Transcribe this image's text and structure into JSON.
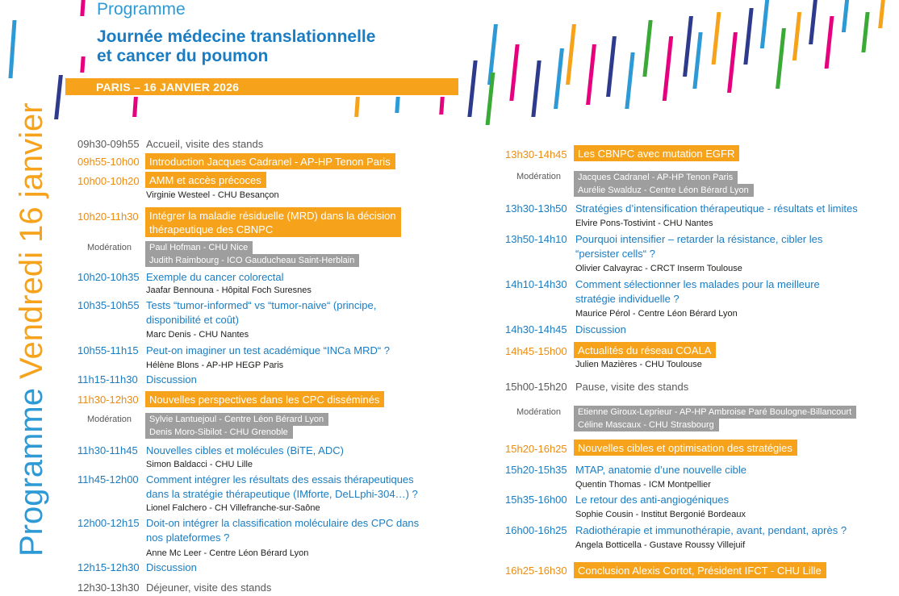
{
  "header": {
    "kicker": "Programme",
    "title_line1": "Journée médecine translationnelle",
    "title_line2": "et cancer du poumon",
    "date": "PARIS – 16 JANVIER 2026"
  },
  "side_title": {
    "prefix": "Programme ",
    "day": "Vendredi 16 janvier"
  },
  "left": {
    "r1": {
      "time": "09h30-09h55",
      "text": "Accueil, visite des stands"
    },
    "r2": {
      "time": "09h55-10h00",
      "text": "Introduction Jacques Cadranel - AP-HP Tenon Paris"
    },
    "r3": {
      "time": "10h00-10h20",
      "text": "AMM et accès précoces",
      "speaker": "Virginie Westeel - CHU Besançon"
    },
    "r4": {
      "time": "10h20-11h30",
      "text_l1": "Intégrer la maladie résiduelle (MRD) dans la décision",
      "text_l2": "thérapeutique des CBNPC"
    },
    "mod1": {
      "label": "Modération",
      "l1": "Paul Hofman - CHU Nice",
      "l2": "Judith Raimbourg - ICO Gaudu­cheau Saint-Herblain"
    },
    "r5": {
      "time": "10h20-10h35",
      "text": "Exemple du cancer colorectal",
      "speaker": "Jaafar Bennouna - Hôpital Foch Suresnes"
    },
    "r6": {
      "time": "10h35-10h55",
      "text_l1": "Tests “tumor-informed“ vs “tumor-naive“ (principe,",
      "text_l2": "disponibilité et coût)",
      "speaker": "Marc Denis - CHU Nantes"
    },
    "r7": {
      "time": "10h55-11h15",
      "text": "Peut-on imaginer un test académique “INCa MRD“ ?",
      "speaker": "Hélène Blons - AP-HP HEGP Paris"
    },
    "r8": {
      "time": "11h15-11h30",
      "text": "Discussion"
    },
    "r9": {
      "time": "11h30-12h30",
      "text": "Nouvelles perspectives dans les CPC disséminés"
    },
    "mod2": {
      "label": "Modération",
      "l1": "Sylvie Lantuejoul - Centre Léon Bérard Lyon",
      "l2": "Denis Moro-Sibilot - CHU Grenoble"
    },
    "r10": {
      "time": "11h30-11h45",
      "text": "Nouvelles cibles et molécules (BiTE, ADC)",
      "speaker": "Simon Baldacci - CHU Lille"
    },
    "r11": {
      "time": "11h45-12h00",
      "text_l1": "Comment intégrer les résultats des essais thérapeutiques",
      "text_l2": "dans la stratégie thérapeutique (IMforte, DeLLphi-304…) ?",
      "speaker": "Lionel Falchero - CH Villefranche-sur-Saône"
    },
    "r12": {
      "time": "12h00-12h15",
      "text_l1": "Doit-on intégrer la classification moléculaire des CPC dans",
      "text_l2": "nos plateformes ?",
      "speaker": "Anne Mc Leer - Centre Léon Bérard Lyon"
    },
    "r13": {
      "time": "12h15-12h30",
      "text": "Discussion"
    },
    "r14": {
      "time": "12h30-13h30",
      "text": "Déjeuner, visite des stands"
    }
  },
  "right": {
    "r1": {
      "time": "13h30-14h45",
      "text": "Les CBNPC avec mutation EGFR"
    },
    "mod1": {
      "label": "Modération",
      "l1": "Jacques Cadranel - AP-HP Tenon Paris",
      "l2": "Aurélie Swalduz - Centre Léon Bérard Lyon"
    },
    "r2": {
      "time": "13h30-13h50",
      "text": "Stratégies d’intensification thérapeutique - résultats et limites",
      "speaker": "Elvire Pons-Tostivint - CHU Nantes"
    },
    "r3": {
      "time": "13h50-14h10",
      "text_l1": "Pourquoi  intensifier – retarder la résistance, cibler les",
      "text_l2": "“persister cells“ ?",
      "speaker": "Olivier Calvayrac - CRCT Inserm Toulouse"
    },
    "r4": {
      "time": "14h10-14h30",
      "text_l1": "Comment sélectionner les malades pour la meilleure",
      "text_l2": "stratégie individuelle ?",
      "speaker": "Maurice Pérol - Centre Léon Bérard Lyon"
    },
    "r5": {
      "time": "14h30-14h45",
      "text": "Discussion"
    },
    "r6": {
      "time": "14h45-15h00",
      "text": "Actualités du réseau COALA",
      "speaker": "Julien Mazières - CHU Toulouse"
    },
    "r7": {
      "time": "15h00-15h20",
      "text": "Pause, visite des stands"
    },
    "mod2": {
      "label": "Modération",
      "l1": "Etienne Giroux-Leprieur - AP-HP Ambroise Paré Boulogne-Billancourt",
      "l2": "Céline Mascaux - CHU Strasbourg"
    },
    "r8": {
      "time": "15h20-16h25",
      "text": "Nouvelles cibles et optimisation des stratégies"
    },
    "r9": {
      "time": "15h20-15h35",
      "text": "MTAP, anatomie d’une nouvelle cible",
      "speaker": "Quentin Thomas - ICM Montpellier"
    },
    "r10": {
      "time": "15h35-16h00",
      "text": "Le retour des anti-angiogéniques",
      "speaker": "Sophie Cousin - Institut Bergonié Bordeaux"
    },
    "r11": {
      "time": "16h00-16h25",
      "text": "Radiothérapie et immunothérapie, avant, pendant, après ?",
      "speaker": "Angela Botticella - Gustave Roussy Villejuif"
    },
    "r12": {
      "time": "16h25-16h30",
      "text": "Conclusion Alexis Cortot, Président IFCT - CHU Lille"
    }
  },
  "colors": {
    "orange": "#f6a31b",
    "blue": "#1a7dc3",
    "light_blue": "#2d9ad6",
    "grey_box": "#9e9e9e",
    "green": "#3aa935",
    "pink": "#e6007e",
    "navy": "#2e3a8c"
  }
}
